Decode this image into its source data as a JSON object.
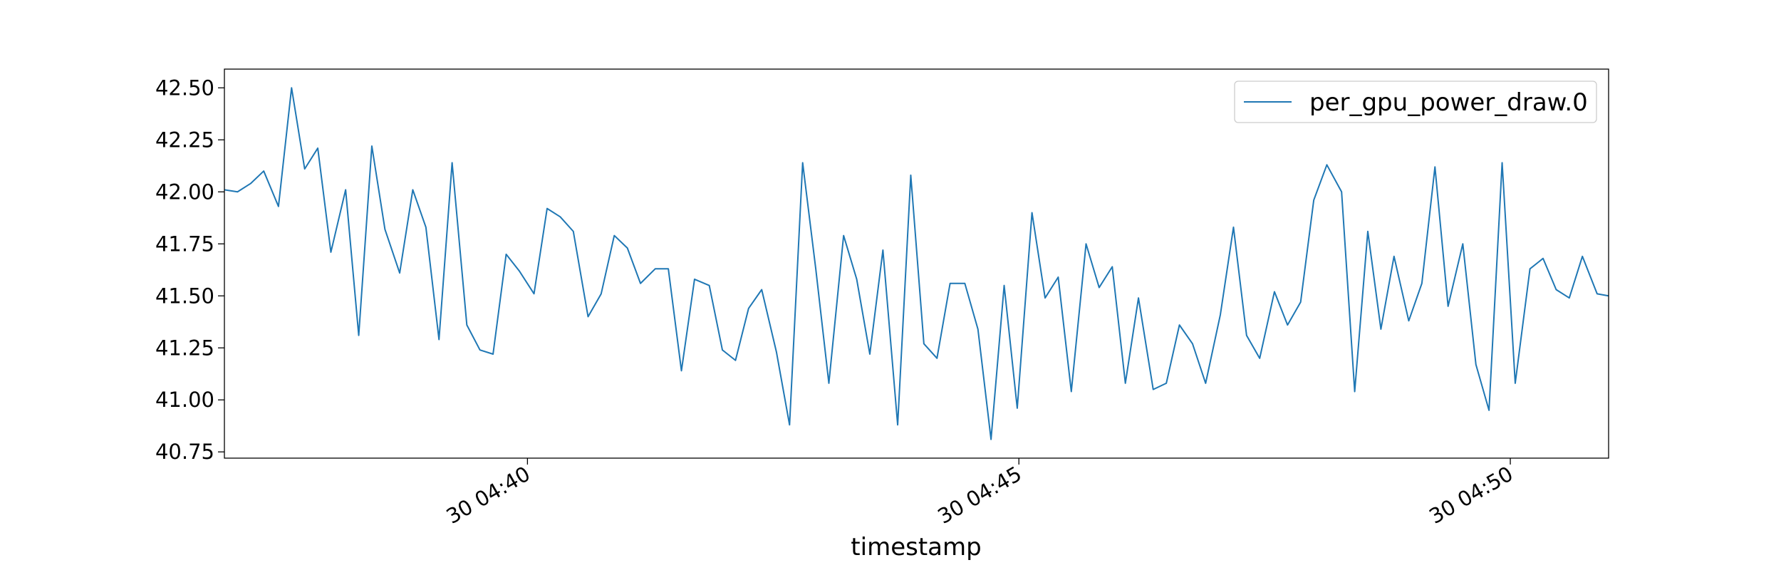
{
  "chart_data": {
    "type": "line",
    "title": "",
    "xlabel": "timestamp",
    "ylabel": "",
    "x_start": "04:36:55",
    "x_end": "04:51:00",
    "xticks": [
      {
        "time": "04:40:00",
        "label": "30 04:40"
      },
      {
        "time": "04:45:00",
        "label": "30 04:45"
      },
      {
        "time": "04:50:00",
        "label": "30 04:50"
      }
    ],
    "ylim": [
      40.72,
      42.59
    ],
    "yticks": [
      "40.75",
      "41.00",
      "41.25",
      "41.50",
      "41.75",
      "42.00",
      "42.25",
      "42.50"
    ],
    "grid": false,
    "legend_position": "top-right",
    "series": [
      {
        "name": "per_gpu_power_draw.0",
        "color": "#1f77b4",
        "x": [
          "04:36:55",
          "04:37:03",
          "04:37:11",
          "04:37:19",
          "04:37:28",
          "04:37:36",
          "04:37:44",
          "04:37:52",
          "04:38:00",
          "04:38:09",
          "04:38:17",
          "04:38:25",
          "04:38:33",
          "04:38:42",
          "04:38:50",
          "04:38:58",
          "04:39:06",
          "04:39:14",
          "04:39:23",
          "04:39:31",
          "04:39:39",
          "04:39:47",
          "04:39:55",
          "04:40:04",
          "04:40:12",
          "04:40:20",
          "04:40:28",
          "04:40:37",
          "04:40:45",
          "04:40:53",
          "04:41:01",
          "04:41:09",
          "04:41:18",
          "04:41:26",
          "04:41:34",
          "04:41:42",
          "04:41:51",
          "04:41:59",
          "04:42:07",
          "04:42:15",
          "04:42:23",
          "04:42:32",
          "04:42:40",
          "04:42:48",
          "04:42:56",
          "04:43:04",
          "04:43:13",
          "04:43:21",
          "04:43:29",
          "04:43:37",
          "04:43:46",
          "04:43:54",
          "04:44:02",
          "04:44:10",
          "04:44:18",
          "04:44:27",
          "04:44:35",
          "04:44:43",
          "04:44:51",
          "04:44:59",
          "04:45:08",
          "04:45:16",
          "04:45:24",
          "04:45:32",
          "04:45:41",
          "04:45:49",
          "04:45:57",
          "04:46:05",
          "04:46:13",
          "04:46:22",
          "04:46:30",
          "04:46:38",
          "04:46:46",
          "04:46:54",
          "04:47:03",
          "04:47:11",
          "04:47:19",
          "04:47:27",
          "04:47:36",
          "04:47:44",
          "04:47:52",
          "04:48:00",
          "04:48:08",
          "04:48:17",
          "04:48:25",
          "04:48:33",
          "04:48:41",
          "04:48:49",
          "04:48:58",
          "04:49:06",
          "04:49:14",
          "04:49:22",
          "04:49:31",
          "04:49:39",
          "04:49:47",
          "04:49:55",
          "04:50:03",
          "04:50:12",
          "04:50:20",
          "04:50:28",
          "04:50:36",
          "04:50:44",
          "04:50:53",
          "04:51:00"
        ],
        "values": [
          42.01,
          42.0,
          42.04,
          42.1,
          41.93,
          42.5,
          42.11,
          42.21,
          41.71,
          42.01,
          41.31,
          42.22,
          41.82,
          41.61,
          42.01,
          41.83,
          41.29,
          42.14,
          41.36,
          41.24,
          41.22,
          41.7,
          41.62,
          41.51,
          41.92,
          41.88,
          41.81,
          41.4,
          41.51,
          41.79,
          41.73,
          41.56,
          41.63,
          41.63,
          41.14,
          41.58,
          41.55,
          41.24,
          41.19,
          41.44,
          41.53,
          41.23,
          40.88,
          42.14,
          41.63,
          41.08,
          41.79,
          41.58,
          41.22,
          41.72,
          40.88,
          42.08,
          41.27,
          41.2,
          41.56,
          41.56,
          41.34,
          40.81,
          41.55,
          40.96,
          41.9,
          41.49,
          41.59,
          41.04,
          41.75,
          41.54,
          41.64,
          41.08,
          41.49,
          41.05,
          41.08,
          41.36,
          41.27,
          41.08,
          41.41,
          41.83,
          41.31,
          41.2,
          41.52,
          41.36,
          41.47,
          41.96,
          42.13,
          42.0,
          41.04,
          41.81,
          41.34,
          41.69,
          41.38,
          41.56,
          42.12,
          41.45,
          41.75,
          41.17,
          40.95,
          42.14,
          41.08,
          41.63,
          41.68,
          41.53,
          41.49,
          41.69,
          41.51,
          41.5
        ]
      }
    ]
  }
}
